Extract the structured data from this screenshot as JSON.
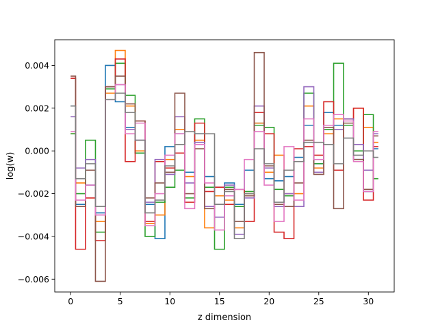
{
  "chart_data": {
    "type": "line",
    "drawstyle": "steps-mid",
    "title": "",
    "xlabel": "z dimension",
    "ylabel": "log(w)",
    "xlim": [
      -1.6,
      32.6
    ],
    "ylim": [
      -0.0066,
      0.0052
    ],
    "xticks": [
      0,
      5,
      10,
      15,
      20,
      25,
      30
    ],
    "xtick_labels": [
      "0",
      "5",
      "10",
      "15",
      "20",
      "25",
      "30"
    ],
    "yticks": [
      -0.006,
      -0.004,
      -0.002,
      0.0,
      0.002,
      0.004
    ],
    "ytick_labels": [
      "−0.006",
      "−0.004",
      "−0.002",
      "0.000",
      "0.002",
      "0.004"
    ],
    "grid": false,
    "legend": "none",
    "x": [
      0,
      1,
      2,
      3,
      4,
      5,
      6,
      7,
      8,
      9,
      10,
      11,
      12,
      13,
      14,
      15,
      16,
      17,
      18,
      19,
      20,
      21,
      22,
      23,
      24,
      25,
      26,
      27,
      28,
      29,
      30,
      31
    ],
    "series": [
      {
        "color": "#1f77b4",
        "values": [
          0.0021,
          -0.0025,
          -0.0016,
          -0.0029,
          0.004,
          0.0023,
          0.0011,
          -0.0001,
          -0.0025,
          -0.0041,
          0.0002,
          0.0008,
          -0.001,
          0.0008,
          -0.0012,
          -0.0017,
          -0.0015,
          -0.0025,
          -0.0009,
          0.0013,
          -0.0013,
          -0.0014,
          -0.0012,
          -0.0003,
          0.0012,
          -0.0006,
          0.0018,
          0.0012,
          0.0015,
          -0.0004,
          -0.0019,
          0.0001
        ]
      },
      {
        "color": "#ff7f0e",
        "values": [
          0.0008,
          -0.0015,
          -0.0022,
          -0.0033,
          0.0027,
          0.0047,
          0.0021,
          0.0,
          -0.0034,
          -0.003,
          -0.0004,
          0.001,
          -0.0012,
          0.0005,
          -0.0036,
          -0.0021,
          -0.0023,
          -0.0036,
          -0.002,
          0.0013,
          -0.001,
          -0.0002,
          -0.002,
          -0.002,
          0.0021,
          -0.0008,
          0.0008,
          0.0015,
          0.0012,
          0.002,
          0.0011,
          0.0004
        ]
      },
      {
        "color": "#2ca02c",
        "values": [
          0.0008,
          -0.002,
          0.0005,
          -0.0038,
          0.0029,
          0.0041,
          0.0026,
          -0.0001,
          -0.004,
          -0.0024,
          -0.0017,
          -0.0009,
          -0.0022,
          0.0015,
          -0.0017,
          -0.0046,
          -0.0017,
          -0.0026,
          -0.0019,
          0.0012,
          0.0011,
          -0.0018,
          -0.0021,
          -0.0005,
          0.0027,
          -0.0006,
          0.001,
          0.0041,
          0.0012,
          0.0,
          0.0017,
          -0.0013
        ]
      },
      {
        "color": "#d62728",
        "values": [
          0.0034,
          -0.0046,
          -0.0022,
          -0.0042,
          0.003,
          0.0043,
          -0.0005,
          0.0014,
          -0.0033,
          -0.0005,
          -0.0008,
          -0.0001,
          -0.0024,
          0.0013,
          -0.0019,
          -0.0017,
          -0.0025,
          -0.0018,
          -0.0033,
          0.0018,
          0.0008,
          -0.0038,
          -0.0041,
          0.0001,
          0.0002,
          -0.0002,
          0.0023,
          -0.0009,
          0.0015,
          0.002,
          -0.0023,
          0.0002
        ]
      },
      {
        "color": "#9467bd",
        "values": [
          0.0016,
          -0.0008,
          -0.0004,
          -0.003,
          0.003,
          0.0031,
          0.001,
          0.0005,
          -0.0024,
          -0.0004,
          -0.0011,
          0.0016,
          -0.0015,
          0.0004,
          -0.0026,
          -0.0031,
          -0.0016,
          -0.0039,
          -0.0022,
          0.0021,
          -0.0008,
          -0.0026,
          -0.002,
          -0.0026,
          0.003,
          -0.001,
          0.0012,
          0.001,
          0.0015,
          0.0003,
          -0.0009,
          0.0008
        ]
      },
      {
        "color": "#8c564b",
        "values": [
          0.0035,
          -0.0026,
          -0.0009,
          -0.0061,
          0.003,
          0.0035,
          0.0022,
          0.0014,
          -0.0022,
          -0.0015,
          -0.001,
          0.0027,
          -0.002,
          0.0001,
          -0.0027,
          -0.0025,
          -0.0018,
          -0.0033,
          -0.0021,
          0.0046,
          -0.0007,
          -0.0025,
          -0.0026,
          -0.0015,
          0.0005,
          -0.0011,
          0.0011,
          -0.0027,
          0.0013,
          -0.0004,
          -0.0018,
          0.0007
        ]
      },
      {
        "color": "#e377c2",
        "values": [
          0.0009,
          -0.0023,
          -0.0016,
          -0.003,
          0.0024,
          0.0031,
          0.0008,
          0.0013,
          -0.0035,
          -0.002,
          -0.0002,
          0.0008,
          -0.0027,
          0.0003,
          -0.0015,
          -0.0037,
          -0.0021,
          -0.0018,
          -0.0004,
          0.0009,
          -0.0016,
          -0.0033,
          0.0002,
          -0.0023,
          0.0015,
          -0.0004,
          0.0012,
          0.0017,
          0.0014,
          -0.0005,
          -0.0019,
          0.0009
        ]
      },
      {
        "color": "#7f7f7f",
        "values": [
          0.0021,
          -0.0013,
          -0.0006,
          -0.0026,
          0.0024,
          0.0027,
          0.0018,
          0.0005,
          -0.0029,
          -0.0023,
          -0.0007,
          0.0003,
          0.0009,
          0.0008,
          0.0008,
          -0.0025,
          -0.0019,
          -0.0041,
          -0.002,
          0.0001,
          -0.0006,
          -0.0024,
          -0.0009,
          -0.0005,
          0.0004,
          0.0004,
          0.0003,
          -0.0006,
          0.0006,
          -0.0002,
          0.0,
          -0.0003
        ]
      }
    ]
  }
}
